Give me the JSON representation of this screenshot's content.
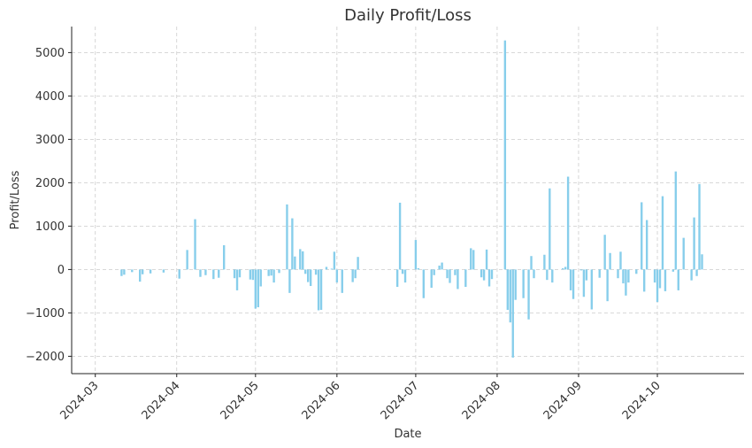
{
  "chart_data": {
    "type": "bar",
    "title": "Daily Profit/Loss",
    "xlabel": "Date",
    "ylabel": "Profit/Loss",
    "x_ticks": [
      "2024-03",
      "2024-04",
      "2024-05",
      "2024-06",
      "2024-07",
      "2024-08",
      "2024-09",
      "2024-10"
    ],
    "y_ticks": [
      -2000,
      -1000,
      0,
      1000,
      2000,
      3000,
      4000,
      5000
    ],
    "xlim": [
      "2024-02-21",
      "2024-11-03"
    ],
    "ylim": [
      -2400,
      5600
    ],
    "grid": true,
    "bar_color": "#87ceeb",
    "series": [
      {
        "values": [
          [
            "2024-03-11",
            -150
          ],
          [
            "2024-03-12",
            -120
          ],
          [
            "2024-03-15",
            -60
          ],
          [
            "2024-03-18",
            -280
          ],
          [
            "2024-03-19",
            -110
          ],
          [
            "2024-03-22",
            -90
          ],
          [
            "2024-03-27",
            -70
          ],
          [
            "2024-04-02",
            -210
          ],
          [
            "2024-04-05",
            450
          ],
          [
            "2024-04-08",
            1160
          ],
          [
            "2024-04-10",
            -170
          ],
          [
            "2024-04-12",
            -130
          ],
          [
            "2024-04-15",
            -220
          ],
          [
            "2024-04-17",
            -190
          ],
          [
            "2024-04-19",
            560
          ],
          [
            "2024-04-23",
            -200
          ],
          [
            "2024-04-24",
            -480
          ],
          [
            "2024-04-25",
            -180
          ],
          [
            "2024-04-29",
            -230
          ],
          [
            "2024-04-30",
            -240
          ],
          [
            "2024-05-01",
            -900
          ],
          [
            "2024-05-02",
            -870
          ],
          [
            "2024-05-03",
            -390
          ],
          [
            "2024-05-06",
            -150
          ],
          [
            "2024-05-07",
            -140
          ],
          [
            "2024-05-08",
            -300
          ],
          [
            "2024-05-10",
            -80
          ],
          [
            "2024-05-13",
            1500
          ],
          [
            "2024-05-14",
            -540
          ],
          [
            "2024-05-15",
            1180
          ],
          [
            "2024-05-16",
            300
          ],
          [
            "2024-05-18",
            470
          ],
          [
            "2024-05-19",
            420
          ],
          [
            "2024-05-20",
            -100
          ],
          [
            "2024-05-21",
            -290
          ],
          [
            "2024-05-22",
            -380
          ],
          [
            "2024-05-24",
            -120
          ],
          [
            "2024-05-25",
            -940
          ],
          [
            "2024-05-26",
            -930
          ],
          [
            "2024-05-28",
            60
          ],
          [
            "2024-05-30",
            20
          ],
          [
            "2024-05-31",
            410
          ],
          [
            "2024-06-01",
            -300
          ],
          [
            "2024-06-03",
            -540
          ],
          [
            "2024-06-07",
            -290
          ],
          [
            "2024-06-08",
            -200
          ],
          [
            "2024-06-09",
            290
          ],
          [
            "2024-06-24",
            -400
          ],
          [
            "2024-06-25",
            1540
          ],
          [
            "2024-06-26",
            -100
          ],
          [
            "2024-06-27",
            -300
          ],
          [
            "2024-07-01",
            680
          ],
          [
            "2024-07-02",
            30
          ],
          [
            "2024-07-04",
            -660
          ],
          [
            "2024-07-07",
            -420
          ],
          [
            "2024-07-08",
            -130
          ],
          [
            "2024-07-10",
            90
          ],
          [
            "2024-07-11",
            160
          ],
          [
            "2024-07-13",
            -200
          ],
          [
            "2024-07-14",
            -310
          ],
          [
            "2024-07-16",
            -130
          ],
          [
            "2024-07-17",
            -450
          ],
          [
            "2024-07-20",
            -400
          ],
          [
            "2024-07-22",
            490
          ],
          [
            "2024-07-23",
            450
          ],
          [
            "2024-07-26",
            -180
          ],
          [
            "2024-07-27",
            -250
          ],
          [
            "2024-07-28",
            460
          ],
          [
            "2024-07-29",
            -390
          ],
          [
            "2024-07-30",
            -220
          ],
          [
            "2024-08-04",
            5280
          ],
          [
            "2024-08-05",
            -930
          ],
          [
            "2024-08-06",
            -1220
          ],
          [
            "2024-08-07",
            -2030
          ],
          [
            "2024-08-08",
            -700
          ],
          [
            "2024-08-11",
            -660
          ],
          [
            "2024-08-13",
            -1150
          ],
          [
            "2024-08-14",
            310
          ],
          [
            "2024-08-15",
            -200
          ],
          [
            "2024-08-19",
            340
          ],
          [
            "2024-08-20",
            -240
          ],
          [
            "2024-08-21",
            1870
          ],
          [
            "2024-08-22",
            -300
          ],
          [
            "2024-08-26",
            30
          ],
          [
            "2024-08-27",
            60
          ],
          [
            "2024-08-28",
            2140
          ],
          [
            "2024-08-29",
            -480
          ],
          [
            "2024-08-30",
            -680
          ],
          [
            "2024-09-02",
            -20
          ],
          [
            "2024-09-03",
            -630
          ],
          [
            "2024-09-04",
            -250
          ],
          [
            "2024-09-06",
            -920
          ],
          [
            "2024-09-09",
            -190
          ],
          [
            "2024-09-11",
            800
          ],
          [
            "2024-09-12",
            -730
          ],
          [
            "2024-09-13",
            380
          ],
          [
            "2024-09-16",
            -200
          ],
          [
            "2024-09-17",
            410
          ],
          [
            "2024-09-18",
            -320
          ],
          [
            "2024-09-19",
            -600
          ],
          [
            "2024-09-20",
            -300
          ],
          [
            "2024-09-23",
            -100
          ],
          [
            "2024-09-25",
            1550
          ],
          [
            "2024-09-26",
            -510
          ],
          [
            "2024-09-27",
            1140
          ],
          [
            "2024-09-30",
            -300
          ],
          [
            "2024-10-01",
            -750
          ],
          [
            "2024-10-02",
            -430
          ],
          [
            "2024-10-03",
            1690
          ],
          [
            "2024-10-04",
            -500
          ],
          [
            "2024-10-07",
            -50
          ],
          [
            "2024-10-08",
            2260
          ],
          [
            "2024-10-09",
            -480
          ],
          [
            "2024-10-11",
            730
          ],
          [
            "2024-10-14",
            -250
          ],
          [
            "2024-10-15",
            1200
          ],
          [
            "2024-10-16",
            -150
          ],
          [
            "2024-10-17",
            1970
          ],
          [
            "2024-10-18",
            350
          ]
        ]
      }
    ]
  }
}
